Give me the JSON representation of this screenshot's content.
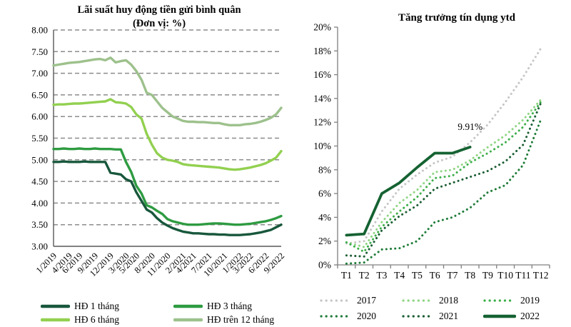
{
  "page": {
    "background": "#ffffff"
  },
  "chart_data": [
    {
      "type": "line",
      "title": "Lãi suất huy động tiền gửi bình quân",
      "subtitle": "(Đơn vị: %)",
      "ylim": [
        3.0,
        8.0
      ],
      "ytick_labels": [
        "8.00",
        "7.50",
        "7.00",
        "6.50",
        "6.00",
        "5.50",
        "5.00",
        "4.50",
        "4.00",
        "3.50",
        "3.00"
      ],
      "grid": "horizontal-dashed",
      "legend_position": "bottom",
      "x_count": 45,
      "xtick_labels": [
        "1/2019",
        "4/2019",
        "6/2019",
        "9/2019",
        "12/2019",
        "3/2020",
        "5/2020",
        "8/2020",
        "11/2020",
        "2/2021",
        "4/2021",
        "7/2021",
        "10/2021",
        "1/2022",
        "3/2022",
        "6/2022",
        "9/2022"
      ],
      "xtick_positions": [
        0,
        3,
        5,
        8,
        11,
        14,
        16,
        19,
        22,
        25,
        27,
        30,
        33,
        36,
        38,
        41,
        44
      ],
      "series": [
        {
          "name": "HĐ 1 tháng",
          "color": "#18573c",
          "style": "solid",
          "values": [
            4.95,
            4.95,
            4.96,
            4.95,
            4.95,
            4.95,
            4.96,
            4.95,
            4.95,
            4.95,
            4.95,
            4.7,
            4.68,
            4.66,
            4.55,
            4.5,
            4.25,
            4.05,
            3.85,
            3.78,
            3.65,
            3.55,
            3.48,
            3.42,
            3.38,
            3.34,
            3.32,
            3.3,
            3.3,
            3.29,
            3.28,
            3.28,
            3.27,
            3.27,
            3.26,
            3.26,
            3.26,
            3.27,
            3.28,
            3.3,
            3.32,
            3.35,
            3.38,
            3.44,
            3.5
          ]
        },
        {
          "name": "HĐ 3 tháng",
          "color": "#2e9b41",
          "style": "solid",
          "values": [
            5.25,
            5.25,
            5.26,
            5.25,
            5.25,
            5.26,
            5.25,
            5.25,
            5.26,
            5.25,
            5.25,
            5.25,
            5.24,
            5.24,
            4.95,
            4.72,
            4.4,
            4.22,
            3.95,
            3.9,
            3.82,
            3.75,
            3.63,
            3.58,
            3.55,
            3.52,
            3.5,
            3.5,
            3.5,
            3.51,
            3.52,
            3.53,
            3.53,
            3.52,
            3.51,
            3.5,
            3.5,
            3.51,
            3.52,
            3.54,
            3.56,
            3.58,
            3.61,
            3.65,
            3.7
          ]
        },
        {
          "name": "HĐ 6 tháng",
          "color": "#92d050",
          "style": "solid",
          "values": [
            6.27,
            6.28,
            6.28,
            6.29,
            6.3,
            6.3,
            6.31,
            6.32,
            6.33,
            6.34,
            6.35,
            6.4,
            6.33,
            6.32,
            6.3,
            6.22,
            6.05,
            5.95,
            5.6,
            5.35,
            5.15,
            5.05,
            5.0,
            4.98,
            4.95,
            4.9,
            4.88,
            4.87,
            4.86,
            4.85,
            4.84,
            4.83,
            4.82,
            4.8,
            4.78,
            4.77,
            4.78,
            4.8,
            4.82,
            4.85,
            4.88,
            4.92,
            4.98,
            5.05,
            5.2
          ]
        },
        {
          "name": "HĐ trên 12 tháng",
          "color": "#9dc18c",
          "style": "solid",
          "values": [
            7.18,
            7.2,
            7.22,
            7.24,
            7.25,
            7.26,
            7.28,
            7.3,
            7.32,
            7.33,
            7.3,
            7.36,
            7.25,
            7.28,
            7.3,
            7.2,
            7.05,
            6.85,
            6.55,
            6.5,
            6.35,
            6.2,
            6.1,
            6.0,
            5.95,
            5.9,
            5.88,
            5.88,
            5.87,
            5.87,
            5.86,
            5.85,
            5.85,
            5.82,
            5.8,
            5.8,
            5.8,
            5.82,
            5.83,
            5.85,
            5.88,
            5.92,
            5.97,
            6.05,
            6.2
          ]
        }
      ]
    },
    {
      "type": "line",
      "title": "Tăng trưởng tín dụng ytd",
      "ylim": [
        0,
        20
      ],
      "ytick_labels": [
        "0%",
        "2%",
        "4%",
        "6%",
        "8%",
        "10%",
        "12%",
        "14%",
        "16%",
        "18%",
        "20%"
      ],
      "grid": "none",
      "legend_position": "bottom",
      "categories": [
        "T1",
        "T2",
        "T3",
        "T4",
        "T5",
        "T6",
        "T7",
        "T8",
        "T9",
        "T10",
        "T11",
        "T12"
      ],
      "annotation": {
        "text": "9.91%",
        "x_index": 7,
        "value": 9.91
      },
      "series": [
        {
          "name": "2017",
          "color": "#c6c6c6",
          "style": "dotted",
          "values": [
            1.8,
            2.0,
            4.5,
            6.4,
            7.6,
            8.6,
            9.1,
            10.3,
            11.8,
            13.7,
            15.8,
            18.2
          ]
        },
        {
          "name": "2018",
          "color": "#8fd584",
          "style": "dotted",
          "values": [
            1.9,
            1.5,
            3.6,
            5.2,
            6.3,
            7.8,
            8.0,
            8.8,
            9.9,
            10.9,
            12.2,
            13.9
          ]
        },
        {
          "name": "2019",
          "color": "#3cae49",
          "style": "dotted",
          "values": [
            1.9,
            1.1,
            3.2,
            4.5,
            5.7,
            7.3,
            7.5,
            8.6,
            9.4,
            10.3,
            11.6,
            13.7
          ]
        },
        {
          "name": "2020",
          "color": "#1f7c39",
          "style": "dotted",
          "values": [
            0.1,
            0.2,
            1.3,
            1.4,
            2.0,
            3.6,
            4.0,
            4.8,
            6.1,
            6.7,
            8.4,
            12.2
          ]
        },
        {
          "name": "2021",
          "color": "#1b5e33",
          "style": "dotted",
          "values": [
            0.8,
            0.7,
            2.9,
            4.1,
            5.0,
            6.4,
            6.9,
            7.4,
            7.9,
            8.7,
            10.1,
            13.6
          ]
        },
        {
          "name": "2022",
          "color": "#156232",
          "style": "solid",
          "values": [
            2.5,
            2.6,
            6.0,
            6.9,
            8.2,
            9.4,
            9.4,
            9.91
          ]
        }
      ]
    }
  ]
}
